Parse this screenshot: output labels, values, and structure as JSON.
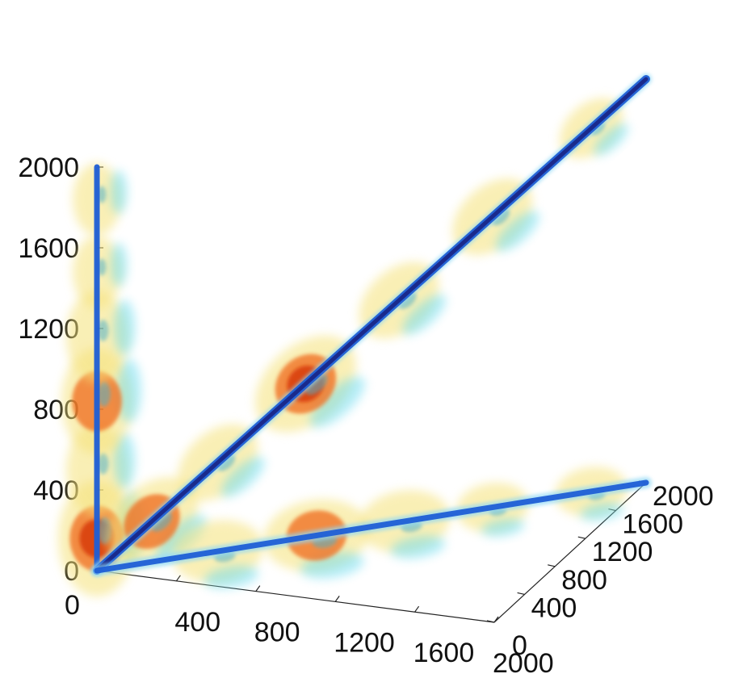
{
  "chart_data": {
    "type": "3d-isosurface",
    "title": "",
    "xlabel": "",
    "ylabel": "",
    "zlabel": "",
    "axes": {
      "x": {
        "range": [
          0,
          2000
        ],
        "ticks": [
          "0",
          "400",
          "800",
          "1200",
          "1600",
          "2000"
        ]
      },
      "y": {
        "range": [
          0,
          2000
        ],
        "ticks": [
          "0",
          "400",
          "800",
          "1200",
          "1600",
          "2000"
        ]
      },
      "z": {
        "range": [
          0,
          2000
        ],
        "ticks": [
          "0",
          "400",
          "800",
          "1200",
          "1600",
          "2000"
        ]
      }
    },
    "grid": false,
    "legend": "none",
    "colors": {
      "low": "#5ad7f0",
      "mid": "#f5e27a",
      "high": "#f06a1e",
      "peak": "#d94010",
      "ridge": "#1f5fd6",
      "diagonal": "#1a2a8c"
    },
    "ridges": [
      {
        "name": "",
        "from": [
          0,
          0,
          0
        ],
        "to": [
          0,
          0,
          2000
        ]
      },
      {
        "name": "",
        "from": [
          0,
          0,
          0
        ],
        "to": [
          2000,
          2000,
          2000
        ]
      },
      {
        "name": "",
        "from": [
          0,
          0,
          0
        ],
        "to": [
          2000,
          2000,
          0
        ]
      }
    ],
    "blobs": [
      {
        "ridge": 0,
        "t": 0.08,
        "level": 3
      },
      {
        "ridge": 0,
        "t": 0.25,
        "level": 1
      },
      {
        "ridge": 0,
        "t": 0.42,
        "level": 2
      },
      {
        "ridge": 0,
        "t": 0.58,
        "level": 1
      },
      {
        "ridge": 0,
        "t": 0.74,
        "level": 0
      },
      {
        "ridge": 0,
        "t": 0.92,
        "level": 0
      },
      {
        "ridge": 1,
        "t": 0.1,
        "level": 2
      },
      {
        "ridge": 1,
        "t": 0.22,
        "level": 1
      },
      {
        "ridge": 1,
        "t": 0.38,
        "level": 3
      },
      {
        "ridge": 1,
        "t": 0.55,
        "level": 1
      },
      {
        "ridge": 1,
        "t": 0.72,
        "level": 1
      },
      {
        "ridge": 1,
        "t": 0.9,
        "level": 0
      },
      {
        "ridge": 2,
        "t": 0.22,
        "level": 1
      },
      {
        "ridge": 2,
        "t": 0.4,
        "level": 2
      },
      {
        "ridge": 2,
        "t": 0.56,
        "level": 1
      },
      {
        "ridge": 2,
        "t": 0.72,
        "level": 0
      },
      {
        "ridge": 2,
        "t": 0.9,
        "level": 0
      }
    ]
  }
}
